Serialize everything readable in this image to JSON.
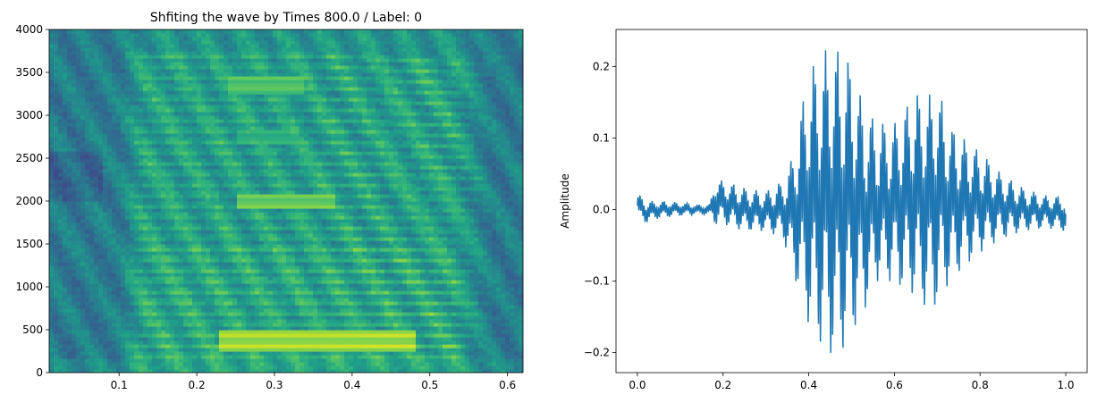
{
  "chart_data": [
    {
      "type": "heatmap",
      "title": "Shfiting the wave by Times 800.0 / Label: 0",
      "xlabel": "",
      "ylabel": "",
      "xlim": [
        0.01,
        0.62
      ],
      "ylim": [
        0,
        4000
      ],
      "x_ticks": [
        0.1,
        0.2,
        0.3,
        0.4,
        0.5,
        0.6
      ],
      "x_tick_labels": [
        "0.1",
        "0.2",
        "0.3",
        "0.4",
        "0.5",
        "0.6"
      ],
      "y_ticks": [
        0,
        500,
        1000,
        1500,
        2000,
        2500,
        3000,
        3500,
        4000
      ],
      "y_tick_labels": [
        "0",
        "500",
        "1000",
        "1500",
        "2000",
        "2500",
        "3000",
        "3500",
        "4000"
      ],
      "colormap": "viridis",
      "harmonic_bands_hz": [
        200,
        320,
        450,
        580,
        700,
        830,
        950,
        1080,
        1200,
        1330,
        1450,
        1580,
        1700,
        1830,
        1950,
        2080,
        2200,
        2330,
        2450,
        2580,
        2700,
        2830,
        2950,
        3080,
        3200,
        3330,
        3450,
        3580,
        3700
      ],
      "voiced_segment_s": [
        0.1,
        0.58
      ],
      "peak_energy_regions": [
        {
          "t": [
            0.23,
            0.48
          ],
          "f": [
            250,
            520
          ],
          "level": 0.95
        },
        {
          "t": [
            0.25,
            0.38
          ],
          "f": [
            1900,
            2100
          ],
          "level": 0.85
        },
        {
          "t": [
            0.24,
            0.34
          ],
          "f": [
            3250,
            3450
          ],
          "level": 0.8
        },
        {
          "t": [
            0.25,
            0.33
          ],
          "f": [
            2650,
            2850
          ],
          "level": 0.7
        }
      ],
      "grid": false
    },
    {
      "type": "line",
      "title": "",
      "xlabel": "",
      "ylabel": "Amplitude",
      "xlim": [
        -0.05,
        1.05
      ],
      "ylim": [
        -0.228,
        0.252
      ],
      "x_ticks": [
        0.0,
        0.2,
        0.4,
        0.6,
        0.8,
        1.0
      ],
      "x_tick_labels": [
        "0.0",
        "0.2",
        "0.4",
        "0.6",
        "0.8",
        "1.0"
      ],
      "y_ticks": [
        -0.2,
        -0.1,
        0.0,
        0.1,
        0.2
      ],
      "y_tick_labels": [
        "−0.2",
        "−0.1",
        "0.0",
        "0.1",
        "0.2"
      ],
      "line_color": "#1f77b4",
      "envelope": {
        "t": [
          0.0,
          0.02,
          0.05,
          0.1,
          0.15,
          0.17,
          0.18,
          0.2,
          0.25,
          0.3,
          0.34,
          0.36,
          0.38,
          0.4,
          0.42,
          0.45,
          0.47,
          0.5,
          0.53,
          0.56,
          0.6,
          0.65,
          0.68,
          0.7,
          0.73,
          0.76,
          0.8,
          0.85,
          0.9,
          0.95,
          1.0
        ],
        "upper": [
          0.023,
          0.012,
          0.012,
          0.01,
          0.006,
          0.008,
          0.045,
          0.04,
          0.03,
          0.025,
          0.04,
          0.07,
          0.13,
          0.19,
          0.21,
          0.23,
          0.22,
          0.2,
          0.14,
          0.12,
          0.12,
          0.16,
          0.16,
          0.17,
          0.12,
          0.1,
          0.08,
          0.05,
          0.03,
          0.02,
          0.018
        ],
        "lower": [
          -0.012,
          -0.018,
          -0.012,
          -0.008,
          -0.006,
          -0.008,
          -0.02,
          -0.02,
          -0.03,
          -0.03,
          -0.04,
          -0.08,
          -0.12,
          -0.16,
          -0.18,
          -0.2,
          -0.205,
          -0.17,
          -0.14,
          -0.1,
          -0.1,
          -0.12,
          -0.14,
          -0.13,
          -0.1,
          -0.08,
          -0.06,
          -0.04,
          -0.03,
          -0.025,
          -0.03
        ]
      },
      "grid": false
    }
  ]
}
